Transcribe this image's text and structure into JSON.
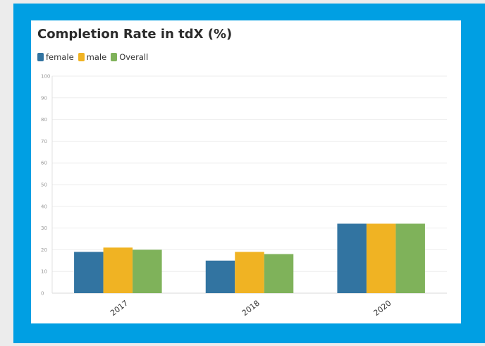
{
  "chart_data": {
    "type": "bar",
    "title": "Completion Rate in tdX (%)",
    "categories": [
      "2017",
      "2018",
      "2020"
    ],
    "series": [
      {
        "name": "female",
        "color": "#3274a1",
        "values": [
          19,
          15,
          32
        ]
      },
      {
        "name": "male",
        "color": "#f0b323",
        "values": [
          21,
          19,
          32
        ]
      },
      {
        "name": "Overall",
        "color": "#7fb25a",
        "values": [
          20,
          18,
          32
        ]
      }
    ],
    "ylim": [
      0,
      100
    ],
    "yticks": [
      0,
      10,
      20,
      30,
      40,
      50,
      60,
      70,
      80,
      90,
      100
    ],
    "grid": true,
    "legend_position": "top-left"
  }
}
